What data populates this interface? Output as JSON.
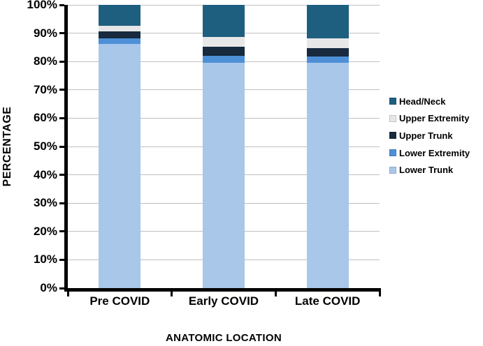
{
  "chart_data": {
    "type": "bar",
    "stacked": true,
    "title": "",
    "xlabel": "ANATOMIC LOCATION",
    "ylabel": "PERCENTAGE",
    "categories": [
      "Pre COVID",
      "Early COVID",
      "Late COVID"
    ],
    "series": [
      {
        "name": "Head/Neck",
        "color": "#1E5F80",
        "values": [
          7.3,
          11.4,
          11.7
        ]
      },
      {
        "name": "Upper Extremity",
        "color": "#E7E7E7",
        "values": [
          2.1,
          3.5,
          3.5
        ]
      },
      {
        "name": "Upper Trunk",
        "color": "#172A3E",
        "values": [
          2.4,
          3.0,
          3.1
        ]
      },
      {
        "name": "Lower Extremity",
        "color": "#4E90D8",
        "values": [
          1.9,
          2.5,
          2.2
        ]
      },
      {
        "name": "Lower Trunk",
        "color": "#A9C7E9",
        "values": [
          86.3,
          79.6,
          79.5
        ]
      }
    ],
    "stack_order_bottom_to_top": [
      "Lower Trunk",
      "Lower Extremity",
      "Upper Trunk",
      "Upper Extremity",
      "Head/Neck"
    ],
    "y_ticks": [
      "0%",
      "10%",
      "20%",
      "30%",
      "40%",
      "50%",
      "60%",
      "70%",
      "80%",
      "90%",
      "100%"
    ],
    "ylim": [
      0,
      100
    ],
    "grid": "horizontal",
    "legend_position": "right",
    "colors": {
      "gridline": "#BFBFBF",
      "axis": "#000000",
      "background": "#FFFFFF"
    }
  }
}
